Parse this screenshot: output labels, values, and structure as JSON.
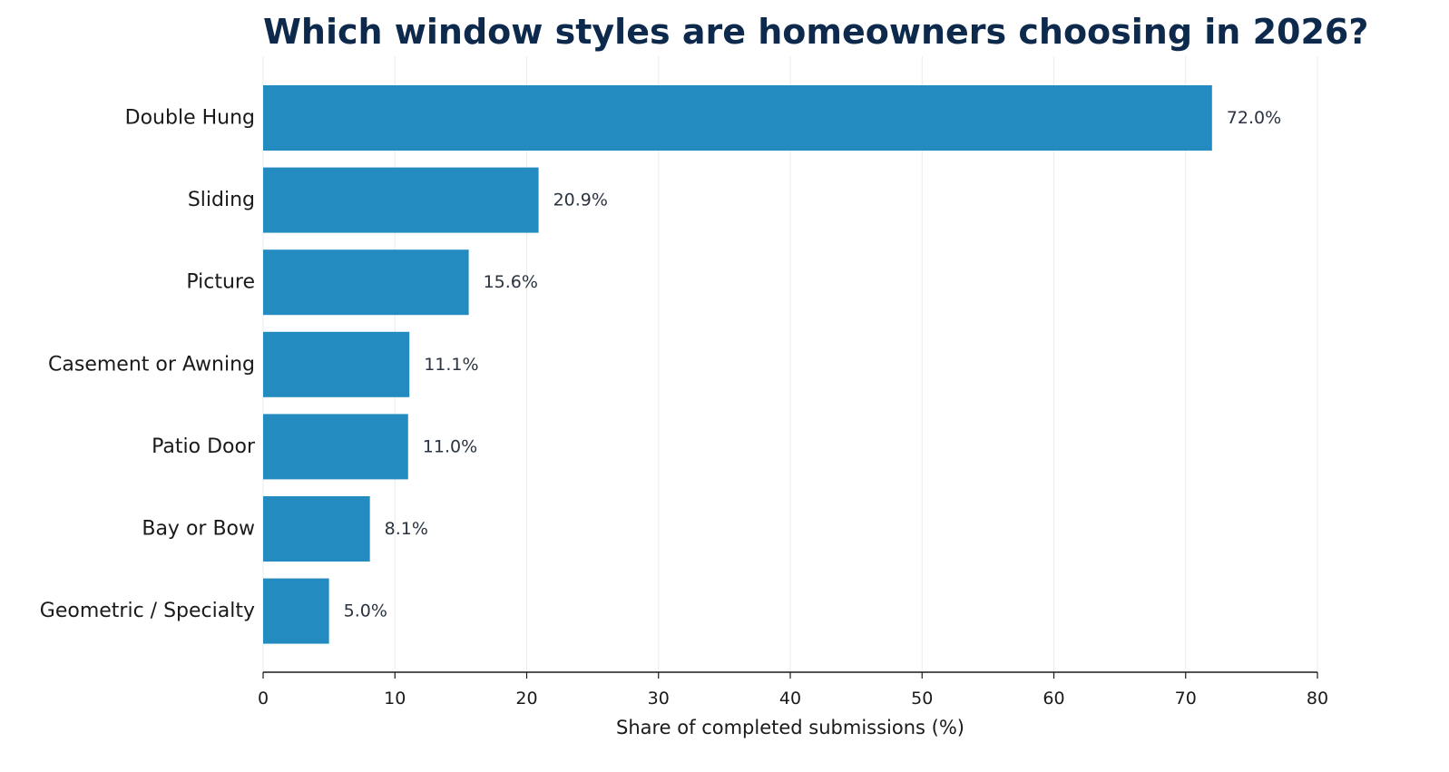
{
  "chart_data": {
    "type": "bar",
    "orientation": "horizontal",
    "title": "Which window styles are homeowners choosing in 2026?",
    "xlabel": "Share of completed submissions (%)",
    "ylabel": "",
    "categories": [
      "Double Hung",
      "Sliding",
      "Picture",
      "Casement or Awning",
      "Patio Door",
      "Bay or Bow",
      "Geometric / Specialty"
    ],
    "values": [
      72.0,
      20.9,
      15.6,
      11.1,
      11.0,
      8.1,
      5.0
    ],
    "value_labels": [
      "72.0%",
      "20.9%",
      "15.6%",
      "11.1%",
      "11.0%",
      "8.1%",
      "5.0%"
    ],
    "xlim": [
      0,
      80
    ],
    "xticks": [
      0,
      10,
      20,
      30,
      40,
      50,
      60,
      70,
      80
    ],
    "xtick_labels": [
      "0",
      "10",
      "20",
      "30",
      "40",
      "50",
      "60",
      "70",
      "80"
    ],
    "grid": "vertical",
    "legend": "none",
    "colors": {
      "bar": "#248bc1",
      "title": "#0d2a4d",
      "grid": "#ebebeb",
      "axis": "#1a1a1a",
      "data_label": "#2a3340"
    }
  }
}
